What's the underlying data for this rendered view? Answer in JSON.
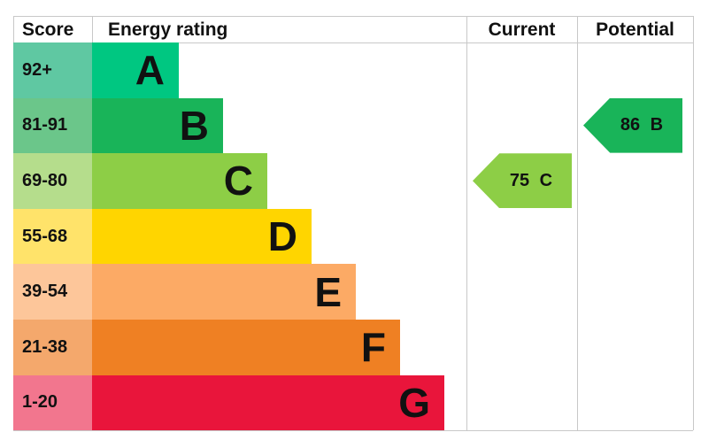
{
  "chart_data": {
    "type": "bar",
    "headers": {
      "score": "Score",
      "rating": "Energy rating",
      "current": "Current",
      "potential": "Potential"
    },
    "bands": [
      {
        "letter": "A",
        "range": "92+",
        "color": "#00c781",
        "score_color": "#5fc8a2"
      },
      {
        "letter": "B",
        "range": "81-91",
        "color": "#19b459",
        "score_color": "#6bc68a"
      },
      {
        "letter": "C",
        "range": "69-80",
        "color": "#8dce46",
        "score_color": "#b5dd8c"
      },
      {
        "letter": "D",
        "range": "55-68",
        "color": "#ffd500",
        "score_color": "#ffe36a"
      },
      {
        "letter": "E",
        "range": "39-54",
        "color": "#fcaa65",
        "score_color": "#fdc69a"
      },
      {
        "letter": "F",
        "range": "21-38",
        "color": "#ef8023",
        "score_color": "#f4a86c"
      },
      {
        "letter": "G",
        "range": "1-20",
        "color": "#e9153b",
        "score_color": "#f2768e"
      }
    ],
    "current": {
      "value": 75,
      "band": "C",
      "label": "75 C"
    },
    "potential": {
      "value": 86,
      "band": "B",
      "label": "86 B"
    }
  }
}
